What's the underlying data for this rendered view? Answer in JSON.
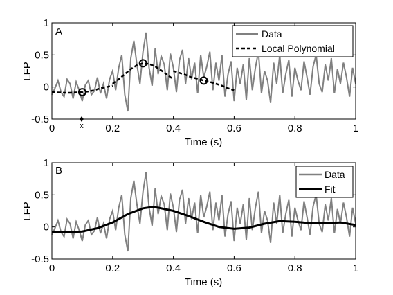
{
  "chart_data": [
    {
      "panel_label": "A",
      "type": "line",
      "xlabel": "Time (s)",
      "ylabel": "LFP",
      "xlim": [
        0,
        1
      ],
      "ylim": [
        -0.5,
        1
      ],
      "xticks": [
        0,
        0.2,
        0.4,
        0.6,
        0.8,
        1
      ],
      "xtick_labels": [
        "0",
        "0.2",
        "0.4",
        "0.6",
        "0.8",
        "1"
      ],
      "yticks": [
        -0.5,
        0,
        0.5,
        1
      ],
      "ytick_labels": [
        "-0.5",
        "0",
        "0.5",
        "1"
      ],
      "legend": {
        "placement": "top-right",
        "entries": [
          "Data",
          "Local Polynomial"
        ]
      },
      "marker_label": "x",
      "marker_x": 0.1,
      "series": [
        {
          "name": "Data",
          "color": "#808080",
          "x": [
            0,
            0.01,
            0.02,
            0.03,
            0.04,
            0.05,
            0.06,
            0.07,
            0.08,
            0.09,
            0.1,
            0.11,
            0.12,
            0.13,
            0.14,
            0.15,
            0.16,
            0.17,
            0.18,
            0.19,
            0.2,
            0.21,
            0.22,
            0.23,
            0.24,
            0.25,
            0.26,
            0.27,
            0.28,
            0.29,
            0.3,
            0.31,
            0.32,
            0.33,
            0.34,
            0.35,
            0.36,
            0.37,
            0.38,
            0.39,
            0.4,
            0.41,
            0.42,
            0.43,
            0.44,
            0.45,
            0.46,
            0.47,
            0.48,
            0.49,
            0.5,
            0.51,
            0.52,
            0.53,
            0.54,
            0.55,
            0.56,
            0.57,
            0.58,
            0.59,
            0.6,
            0.61,
            0.62,
            0.63,
            0.64,
            0.65,
            0.66,
            0.67,
            0.68,
            0.69,
            0.7,
            0.71,
            0.72,
            0.73,
            0.74,
            0.75,
            0.76,
            0.77,
            0.78,
            0.79,
            0.8,
            0.81,
            0.82,
            0.83,
            0.84,
            0.85,
            0.86,
            0.87,
            0.88,
            0.89,
            0.9,
            0.91,
            0.92,
            0.93,
            0.94,
            0.95,
            0.96,
            0.97,
            0.98,
            0.99,
            1
          ],
          "values": [
            -0.12,
            -0.02,
            0.1,
            -0.08,
            -0.15,
            0.12,
            0.05,
            -0.18,
            0.08,
            -0.05,
            -0.22,
            0.03,
            0.1,
            -0.12,
            -0.06,
            0.15,
            -0.1,
            0.05,
            -0.18,
            0.12,
            0.25,
            -0.05,
            0.3,
            0.5,
            -0.12,
            -0.38,
            0.45,
            0.72,
            0.35,
            0.05,
            0.55,
            0.85,
            0.3,
            0.02,
            0.6,
            0.2,
            0.48,
            0.35,
            -0.05,
            0.52,
            0.3,
            -0.08,
            0.42,
            0.58,
            0.05,
            0.45,
            0.12,
            0.38,
            -0.1,
            0.5,
            0.15,
            0.32,
            0.55,
            -0.05,
            0.38,
            0.1,
            0.5,
            -0.15,
            0.2,
            0.4,
            -0.22,
            0.3,
            0.05,
            0.35,
            -0.2,
            0.45,
            -0.05,
            0.3,
            0.55,
            -0.1,
            0.25,
            0.1,
            -0.25,
            0.38,
            0.05,
            0.5,
            -0.1,
            0.2,
            0.42,
            -0.15,
            0.3,
            0.1,
            -0.05,
            0.4,
            0.15,
            -0.12,
            0.32,
            0.5,
            0.05,
            -0.08,
            0.35,
            0.1,
            0.45,
            -0.1,
            0.28,
            0.05,
            0.38,
            0.15,
            -0.15,
            0.3,
            0.05
          ]
        },
        {
          "name": "Local Polynomial",
          "color": "#000000",
          "segments": [
            {
              "x": [
                0,
                0.02,
                0.04,
                0.06,
                0.08,
                0.1,
                0.12,
                0.14,
                0.16,
                0.18,
                0.2
              ],
              "values": [
                -0.08,
                -0.085,
                -0.09,
                -0.09,
                -0.085,
                -0.08,
                -0.07,
                -0.05,
                -0.02,
                0.0,
                0.02
              ]
            },
            {
              "x": [
                0.2,
                0.22,
                0.24,
                0.26,
                0.28,
                0.3,
                0.32,
                0.34,
                0.36,
                0.38,
                0.4
              ],
              "values": [
                0.05,
                0.12,
                0.2,
                0.28,
                0.34,
                0.37,
                0.36,
                0.32,
                0.26,
                0.19,
                0.12
              ]
            },
            {
              "x": [
                0.4,
                0.42,
                0.44,
                0.46,
                0.48,
                0.5,
                0.52,
                0.54,
                0.56,
                0.58,
                0.6
              ],
              "values": [
                0.25,
                0.22,
                0.19,
                0.15,
                0.13,
                0.1,
                0.08,
                0.05,
                0.02,
                -0.02,
                -0.05
              ]
            }
          ],
          "highlight_points": [
            {
              "x": 0.1,
              "y": -0.08
            },
            {
              "x": 0.3,
              "y": 0.37
            },
            {
              "x": 0.5,
              "y": 0.1
            }
          ]
        }
      ]
    },
    {
      "panel_label": "B",
      "type": "line",
      "xlabel": "Time (s)",
      "ylabel": "LFP",
      "xlim": [
        0,
        1
      ],
      "ylim": [
        -0.5,
        1
      ],
      "xticks": [
        0,
        0.2,
        0.4,
        0.6,
        0.8,
        1
      ],
      "xtick_labels": [
        "0",
        "0.2",
        "0.4",
        "0.6",
        "0.8",
        "1"
      ],
      "yticks": [
        -0.5,
        0,
        0.5,
        1
      ],
      "ytick_labels": [
        "-0.5",
        "0",
        "0.5",
        "1"
      ],
      "legend": {
        "placement": "top-right",
        "entries": [
          "Data",
          "Fit"
        ]
      },
      "series": [
        {
          "name": "Data",
          "color": "#808080",
          "same_as": "A.Data"
        },
        {
          "name": "Fit",
          "color": "#000000",
          "x": [
            0,
            0.05,
            0.1,
            0.15,
            0.2,
            0.25,
            0.3,
            0.33,
            0.35,
            0.4,
            0.45,
            0.5,
            0.55,
            0.6,
            0.65,
            0.7,
            0.75,
            0.8,
            0.85,
            0.9,
            0.95,
            1
          ],
          "values": [
            -0.08,
            -0.08,
            -0.07,
            -0.02,
            0.07,
            0.2,
            0.29,
            0.31,
            0.3,
            0.25,
            0.17,
            0.08,
            0.0,
            -0.03,
            -0.01,
            0.05,
            0.09,
            0.08,
            0.06,
            0.06,
            0.07,
            0.03
          ]
        }
      ]
    }
  ]
}
